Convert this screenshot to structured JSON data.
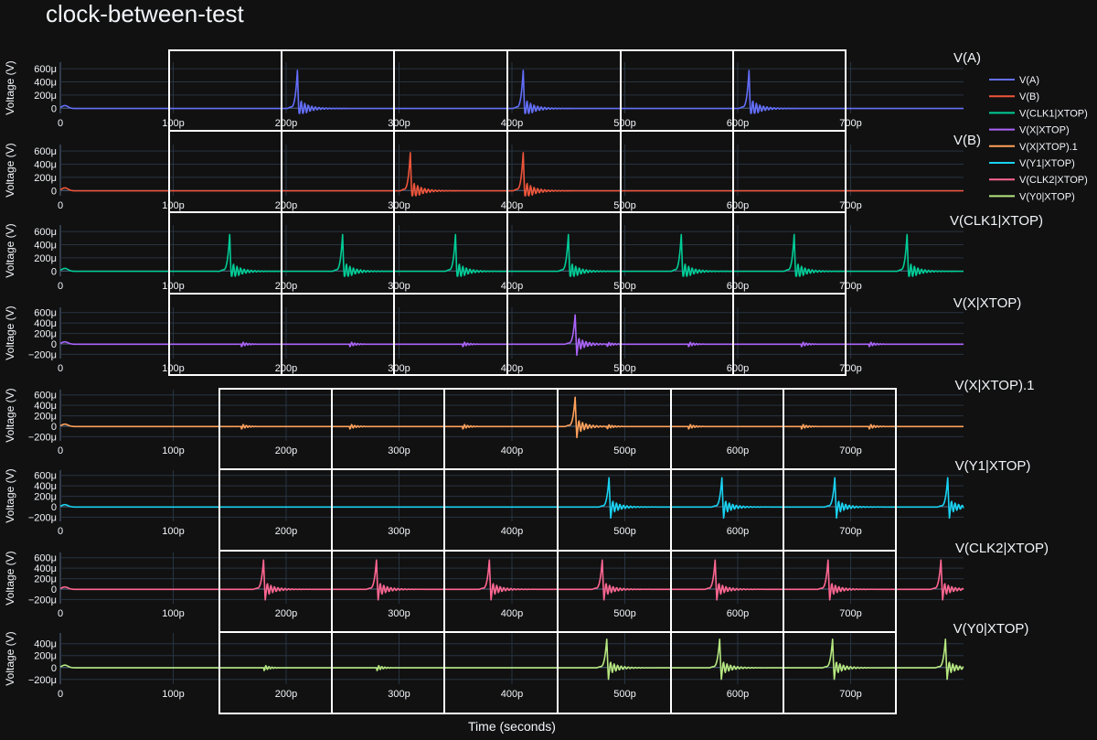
{
  "chart_data": {
    "type": "line",
    "title": "clock-between-test",
    "xlabel": "Time (seconds)",
    "ylabel": "Voltage (V)",
    "xlim": [
      0,
      800
    ],
    "x_ticks": [
      "0",
      "100p",
      "200p",
      "300p",
      "400p",
      "500p",
      "600p",
      "700p"
    ],
    "grid": true,
    "legend_position": "top-right",
    "colors": {
      "background": "#111111",
      "grid": "#283442",
      "zero_line": "#506784",
      "text": "#f2f5fa",
      "overlay_box": "#ffffff"
    },
    "panels": [
      {
        "name": "V(A)",
        "color": "#636efa",
        "ylim": [
          -80,
          700
        ],
        "y_ticks": [
          {
            "value": 600,
            "label": "600μ"
          },
          {
            "value": 400,
            "label": "400μ"
          },
          {
            "value": 200,
            "label": "200μ"
          },
          {
            "value": 0,
            "label": "0"
          }
        ],
        "baseline": -5,
        "spikes": [
          {
            "t": 210,
            "peak": 580,
            "dip": -180
          },
          {
            "t": 410,
            "peak": 580,
            "dip": -180
          },
          {
            "t": 610,
            "peak": 580,
            "dip": -180
          }
        ],
        "small_ringing": []
      },
      {
        "name": "V(B)",
        "color": "#ef553b",
        "ylim": [
          -80,
          700
        ],
        "y_ticks": [
          {
            "value": 600,
            "label": "600μ"
          },
          {
            "value": 400,
            "label": "400μ"
          },
          {
            "value": 200,
            "label": "200μ"
          },
          {
            "value": 0,
            "label": "0"
          }
        ],
        "baseline": -5,
        "spikes": [
          {
            "t": 310,
            "peak": 580,
            "dip": -180
          },
          {
            "t": 410,
            "peak": 580,
            "dip": -180
          }
        ],
        "small_ringing": []
      },
      {
        "name": "V(CLK1|XTOP)",
        "color": "#00cc96",
        "ylim": [
          -80,
          700
        ],
        "y_ticks": [
          {
            "value": 600,
            "label": "600μ"
          },
          {
            "value": 400,
            "label": "400μ"
          },
          {
            "value": 200,
            "label": "200μ"
          },
          {
            "value": 0,
            "label": "0"
          }
        ],
        "baseline": -5,
        "spikes": [
          {
            "t": 150,
            "peak": 560,
            "dip": -170
          },
          {
            "t": 250,
            "peak": 560,
            "dip": -170
          },
          {
            "t": 350,
            "peak": 560,
            "dip": -170
          },
          {
            "t": 450,
            "peak": 560,
            "dip": -170
          },
          {
            "t": 550,
            "peak": 560,
            "dip": -170
          },
          {
            "t": 650,
            "peak": 560,
            "dip": -170
          },
          {
            "t": 750,
            "peak": 560,
            "dip": -170
          }
        ],
        "small_ringing": []
      },
      {
        "name": "V(X|XTOP)",
        "color": "#ab63fa",
        "ylim": [
          -280,
          700
        ],
        "y_ticks": [
          {
            "value": 600,
            "label": "600μ"
          },
          {
            "value": 400,
            "label": "400μ"
          },
          {
            "value": 200,
            "label": "200μ"
          },
          {
            "value": 0,
            "label": "0"
          },
          {
            "value": -200,
            "label": "−200μ"
          }
        ],
        "baseline": -5,
        "spikes": [
          {
            "t": 456,
            "peak": 560,
            "dip": -230
          }
        ],
        "small_ringing": [
          160,
          256,
          356,
          484,
          556,
          656,
          716
        ]
      },
      {
        "name": "V(X|XTOP).1",
        "color": "#ffa15a",
        "ylim": [
          -280,
          700
        ],
        "y_ticks": [
          {
            "value": 600,
            "label": "600μ"
          },
          {
            "value": 400,
            "label": "400μ"
          },
          {
            "value": 200,
            "label": "200μ"
          },
          {
            "value": 0,
            "label": "0"
          },
          {
            "value": -200,
            "label": "−200μ"
          }
        ],
        "baseline": -5,
        "spikes": [
          {
            "t": 456,
            "peak": 560,
            "dip": -230
          }
        ],
        "small_ringing": [
          160,
          256,
          356,
          484,
          556,
          656,
          716
        ]
      },
      {
        "name": "V(Y1|XTOP)",
        "color": "#19d3f3",
        "ylim": [
          -280,
          700
        ],
        "y_ticks": [
          {
            "value": 600,
            "label": "600μ"
          },
          {
            "value": 400,
            "label": "400μ"
          },
          {
            "value": 200,
            "label": "200μ"
          },
          {
            "value": 0,
            "label": "0"
          },
          {
            "value": -200,
            "label": "−200μ"
          }
        ],
        "baseline": -5,
        "spikes": [
          {
            "t": 486,
            "peak": 560,
            "dip": -230
          },
          {
            "t": 586,
            "peak": 560,
            "dip": -230
          },
          {
            "t": 686,
            "peak": 560,
            "dip": -230
          },
          {
            "t": 786,
            "peak": 560,
            "dip": -230
          }
        ],
        "small_ringing": []
      },
      {
        "name": "V(CLK2|XTOP)",
        "color": "#ff6692",
        "ylim": [
          -280,
          700
        ],
        "y_ticks": [
          {
            "value": 600,
            "label": "600μ"
          },
          {
            "value": 400,
            "label": "400μ"
          },
          {
            "value": 200,
            "label": "200μ"
          },
          {
            "value": 0,
            "label": "0"
          },
          {
            "value": -200,
            "label": "−200μ"
          }
        ],
        "baseline": -5,
        "spikes": [
          {
            "t": 180,
            "peak": 560,
            "dip": -220
          },
          {
            "t": 280,
            "peak": 560,
            "dip": -220
          },
          {
            "t": 380,
            "peak": 560,
            "dip": -220
          },
          {
            "t": 480,
            "peak": 560,
            "dip": -220
          },
          {
            "t": 580,
            "peak": 560,
            "dip": -220
          },
          {
            "t": 680,
            "peak": 560,
            "dip": -220
          },
          {
            "t": 780,
            "peak": 560,
            "dip": -220
          }
        ],
        "small_ringing": []
      },
      {
        "name": "V(Y0|XTOP)",
        "color": "#b6e880",
        "ylim": [
          -280,
          580
        ],
        "y_ticks": [
          {
            "value": 400,
            "label": "400μ"
          },
          {
            "value": 200,
            "label": "200μ"
          },
          {
            "value": 0,
            "label": "0"
          },
          {
            "value": -200,
            "label": "−200μ"
          }
        ],
        "baseline": -5,
        "spikes": [
          {
            "t": 484,
            "peak": 480,
            "dip": -210
          },
          {
            "t": 584,
            "peak": 480,
            "dip": -210
          },
          {
            "t": 684,
            "peak": 480,
            "dip": -210
          },
          {
            "t": 784,
            "peak": 480,
            "dip": -210
          }
        ],
        "small_ringing": [
          180,
          280
        ]
      }
    ],
    "legend": [
      "V(A)",
      "V(B)",
      "V(CLK1|XTOP)",
      "V(X|XTOP)",
      "V(X|XTOP).1",
      "V(Y1|XTOP)",
      "V(CLK2|XTOP)",
      "V(Y0|XTOP)"
    ]
  }
}
